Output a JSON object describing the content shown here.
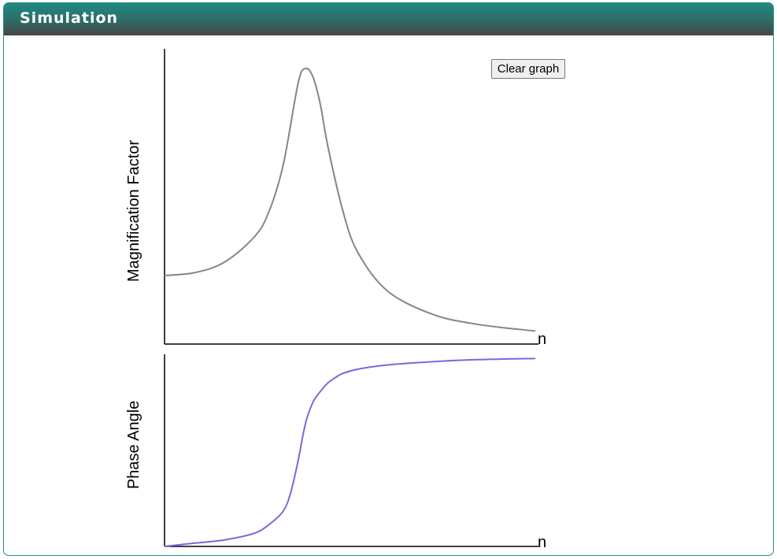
{
  "panel": {
    "title": "Simulation"
  },
  "controls": {
    "clear_button_label": "Clear graph"
  },
  "colors": {
    "header_teal": "#1f8a84",
    "magnification_curve": "#7d8a87",
    "phase_curve": "#7b68dd",
    "axis": "#000000"
  },
  "chart_data": [
    {
      "type": "line",
      "title": "",
      "ylabel": "Magnification Factor",
      "xlabel": "n",
      "xlim": [
        0,
        2.5
      ],
      "ylim": [
        0,
        4.1
      ],
      "grid": false,
      "series": [
        {
          "x": [
            0.0,
            0.2,
            0.4,
            0.6,
            0.7,
            0.8,
            0.9,
            0.95,
            1.0,
            1.05,
            1.1,
            1.2,
            1.3,
            1.5,
            1.8,
            2.1,
            2.5
          ],
          "values": [
            1.0,
            1.04,
            1.19,
            1.55,
            1.91,
            2.61,
            3.8,
            4.02,
            3.9,
            3.5,
            2.9,
            1.96,
            1.35,
            0.78,
            0.44,
            0.29,
            0.19
          ]
        }
      ]
    },
    {
      "type": "line",
      "title": "",
      "ylabel": "Phase Angle",
      "xlabel": "n",
      "xlim": [
        0,
        2.5
      ],
      "ylim": [
        0,
        180
      ],
      "grid": false,
      "series": [
        {
          "x": [
            0.0,
            0.2,
            0.4,
            0.6,
            0.7,
            0.8,
            0.85,
            0.9,
            0.95,
            1.0,
            1.05,
            1.1,
            1.15,
            1.2,
            1.3,
            1.5,
            1.8,
            2.1,
            2.5
          ],
          "values": [
            0,
            3,
            6,
            12,
            20,
            33,
            50,
            80,
            115,
            135,
            145,
            153,
            158,
            162,
            166,
            170,
            173,
            175,
            176
          ]
        }
      ]
    }
  ]
}
